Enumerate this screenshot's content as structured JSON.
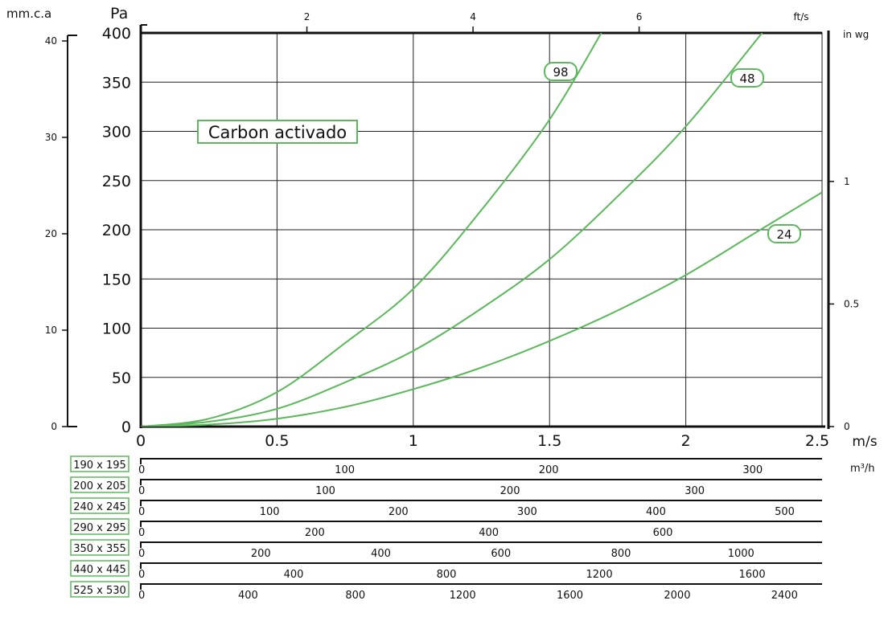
{
  "chart_data": {
    "type": "line",
    "title_box": "Carbon activado",
    "axes": {
      "left_primary": {
        "label": "Pa",
        "ylim": [
          0,
          400
        ],
        "ticks": [
          0,
          50,
          100,
          150,
          200,
          250,
          300,
          350,
          400
        ]
      },
      "left_secondary": {
        "label": "mm.c.a",
        "ylim": [
          0,
          40
        ],
        "ticks": [
          0,
          10,
          20,
          30,
          40
        ]
      },
      "right": {
        "label": "in wg",
        "ticks": [
          {
            "value": 0,
            "label": "0"
          },
          {
            "value": 0.5,
            "label": "0.5"
          },
          {
            "value": 1,
            "label": "1"
          }
        ]
      },
      "top": {
        "label": "ft/s",
        "ticks": [
          {
            "value": 2,
            "label": "2"
          },
          {
            "value": 4,
            "label": "4"
          },
          {
            "value": 6,
            "label": "6"
          }
        ]
      },
      "bottom": {
        "label": "m/s",
        "xlim": [
          0,
          2.5
        ],
        "ticks": [
          "0",
          "0.5",
          "1",
          "1.5",
          "2",
          "2.5"
        ]
      }
    },
    "grid": true,
    "series": [
      {
        "name": "98",
        "color": "#5cb85c",
        "points": [
          [
            0,
            0
          ],
          [
            0.25,
            8
          ],
          [
            0.5,
            35
          ],
          [
            0.75,
            85
          ],
          [
            1,
            140
          ],
          [
            1.25,
            220
          ],
          [
            1.5,
            312
          ],
          [
            1.69,
            400
          ]
        ]
      },
      {
        "name": "48",
        "color": "#5cb85c",
        "points": [
          [
            0,
            0
          ],
          [
            0.25,
            5
          ],
          [
            0.5,
            18
          ],
          [
            0.75,
            45
          ],
          [
            1,
            77
          ],
          [
            1.25,
            120
          ],
          [
            1.5,
            170
          ],
          [
            1.75,
            234
          ],
          [
            2,
            305
          ],
          [
            2.28,
            400
          ]
        ]
      },
      {
        "name": "24",
        "color": "#5cb85c",
        "points": [
          [
            0,
            0
          ],
          [
            0.25,
            2
          ],
          [
            0.5,
            8
          ],
          [
            0.75,
            20
          ],
          [
            1,
            38
          ],
          [
            1.25,
            60
          ],
          [
            1.5,
            87
          ],
          [
            1.75,
            118
          ],
          [
            2,
            154
          ],
          [
            2.25,
            196
          ],
          [
            2.5,
            238
          ]
        ]
      }
    ],
    "flow_scales": {
      "unit": "m³/h",
      "rows": [
        {
          "size": "190 x 195",
          "ticks": [
            {
              "value": 0,
              "label": "0"
            },
            {
              "value": 100,
              "label": "100"
            },
            {
              "value": 200,
              "label": "200"
            },
            {
              "value": 300,
              "label": "300"
            }
          ],
          "max": 334
        },
        {
          "size": "200 x 205",
          "ticks": [
            {
              "value": 0,
              "label": "0"
            },
            {
              "value": 100,
              "label": "100"
            },
            {
              "value": 200,
              "label": "200"
            },
            {
              "value": 300,
              "label": "300"
            }
          ],
          "max": 369
        },
        {
          "size": "240 x 245",
          "ticks": [
            {
              "value": 0,
              "label": "0"
            },
            {
              "value": 100,
              "label": "100"
            },
            {
              "value": 200,
              "label": "200"
            },
            {
              "value": 300,
              "label": "300"
            },
            {
              "value": 400,
              "label": "400"
            },
            {
              "value": 500,
              "label": "500"
            }
          ],
          "max": 529
        },
        {
          "size": "290 x 295",
          "ticks": [
            {
              "value": 0,
              "label": "0"
            },
            {
              "value": 200,
              "label": "200"
            },
            {
              "value": 400,
              "label": "400"
            },
            {
              "value": 600,
              "label": "600"
            }
          ],
          "max": 783
        },
        {
          "size": "350 x 355",
          "ticks": [
            {
              "value": 0,
              "label": "0"
            },
            {
              "value": 200,
              "label": "200"
            },
            {
              "value": 400,
              "label": "400"
            },
            {
              "value": 600,
              "label": "600"
            },
            {
              "value": 800,
              "label": "800"
            },
            {
              "value": 1000,
              "label": "1000"
            }
          ],
          "max": 1135
        },
        {
          "size": "440 x 445",
          "ticks": [
            {
              "value": 0,
              "label": "0"
            },
            {
              "value": 400,
              "label": "400"
            },
            {
              "value": 800,
              "label": "800"
            },
            {
              "value": 1200,
              "label": "1200"
            },
            {
              "value": 1600,
              "label": "1600"
            }
          ],
          "max": 1783
        },
        {
          "size": "525 x 530",
          "ticks": [
            {
              "value": 0,
              "label": "0"
            },
            {
              "value": 400,
              "label": "400"
            },
            {
              "value": 800,
              "label": "800"
            },
            {
              "value": 1200,
              "label": "1200"
            },
            {
              "value": 1600,
              "label": "1600"
            },
            {
              "value": 2000,
              "label": "2000"
            },
            {
              "value": 2400,
              "label": "2400"
            }
          ],
          "max": 2540
        }
      ]
    },
    "colors": {
      "accent": "#5cb85c",
      "axis": "#111111",
      "grid": "#222222"
    }
  }
}
